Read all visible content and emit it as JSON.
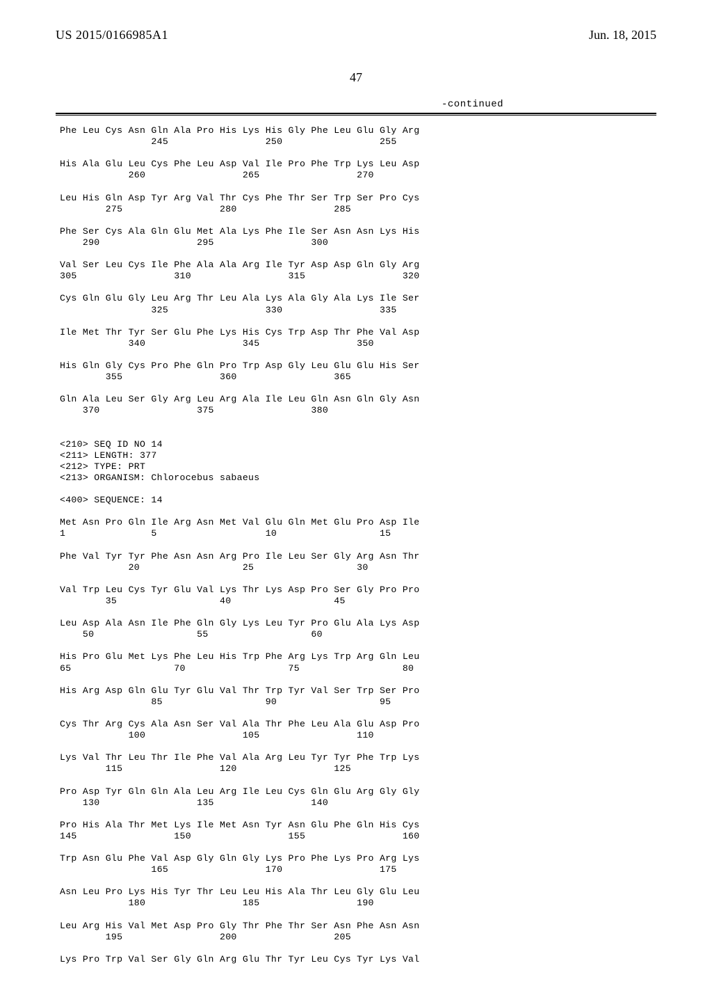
{
  "header": {
    "patent_number": "US 2015/0166985A1",
    "patent_date": "Jun. 18, 2015"
  },
  "page_number": "47",
  "continued_label": "-continued",
  "seq_lines": [
    "Phe Leu Cys Asn Gln Ala Pro His Lys His Gly Phe Leu Glu Gly Arg",
    "                245                 250                 255",
    "",
    "His Ala Glu Leu Cys Phe Leu Asp Val Ile Pro Phe Trp Lys Leu Asp",
    "            260                 265                 270",
    "",
    "Leu His Gln Asp Tyr Arg Val Thr Cys Phe Thr Ser Trp Ser Pro Cys",
    "        275                 280                 285",
    "",
    "Phe Ser Cys Ala Gln Glu Met Ala Lys Phe Ile Ser Asn Asn Lys His",
    "    290                 295                 300",
    "",
    "Val Ser Leu Cys Ile Phe Ala Ala Arg Ile Tyr Asp Asp Gln Gly Arg",
    "305                 310                 315                 320",
    "",
    "Cys Gln Glu Gly Leu Arg Thr Leu Ala Lys Ala Gly Ala Lys Ile Ser",
    "                325                 330                 335",
    "",
    "Ile Met Thr Tyr Ser Glu Phe Lys His Cys Trp Asp Thr Phe Val Asp",
    "            340                 345                 350",
    "",
    "His Gln Gly Cys Pro Phe Gln Pro Trp Asp Gly Leu Glu Glu His Ser",
    "        355                 360                 365",
    "",
    "Gln Ala Leu Ser Gly Arg Leu Arg Ala Ile Leu Gln Asn Gln Gly Asn",
    "    370                 375                 380",
    "",
    "",
    "<210> SEQ ID NO 14",
    "<211> LENGTH: 377",
    "<212> TYPE: PRT",
    "<213> ORGANISM: Chlorocebus sabaeus",
    "",
    "<400> SEQUENCE: 14",
    "",
    "Met Asn Pro Gln Ile Arg Asn Met Val Glu Gln Met Glu Pro Asp Ile",
    "1               5                   10                  15",
    "",
    "Phe Val Tyr Tyr Phe Asn Asn Arg Pro Ile Leu Ser Gly Arg Asn Thr",
    "            20                  25                  30",
    "",
    "Val Trp Leu Cys Tyr Glu Val Lys Thr Lys Asp Pro Ser Gly Pro Pro",
    "        35                  40                  45",
    "",
    "Leu Asp Ala Asn Ile Phe Gln Gly Lys Leu Tyr Pro Glu Ala Lys Asp",
    "    50                  55                  60",
    "",
    "His Pro Glu Met Lys Phe Leu His Trp Phe Arg Lys Trp Arg Gln Leu",
    "65                  70                  75                  80",
    "",
    "His Arg Asp Gln Glu Tyr Glu Val Thr Trp Tyr Val Ser Trp Ser Pro",
    "                85                  90                  95",
    "",
    "Cys Thr Arg Cys Ala Asn Ser Val Ala Thr Phe Leu Ala Glu Asp Pro",
    "            100                 105                 110",
    "",
    "Lys Val Thr Leu Thr Ile Phe Val Ala Arg Leu Tyr Tyr Phe Trp Lys",
    "        115                 120                 125",
    "",
    "Pro Asp Tyr Gln Gln Ala Leu Arg Ile Leu Cys Gln Glu Arg Gly Gly",
    "    130                 135                 140",
    "",
    "Pro His Ala Thr Met Lys Ile Met Asn Tyr Asn Glu Phe Gln His Cys",
    "145                 150                 155                 160",
    "",
    "Trp Asn Glu Phe Val Asp Gly Gln Gly Lys Pro Phe Lys Pro Arg Lys",
    "                165                 170                 175",
    "",
    "Asn Leu Pro Lys His Tyr Thr Leu Leu His Ala Thr Leu Gly Glu Leu",
    "            180                 185                 190",
    "",
    "Leu Arg His Val Met Asp Pro Gly Thr Phe Thr Ser Asn Phe Asn Asn",
    "        195                 200                 205",
    "",
    "Lys Pro Trp Val Ser Gly Gln Arg Glu Thr Tyr Leu Cys Tyr Lys Val"
  ]
}
